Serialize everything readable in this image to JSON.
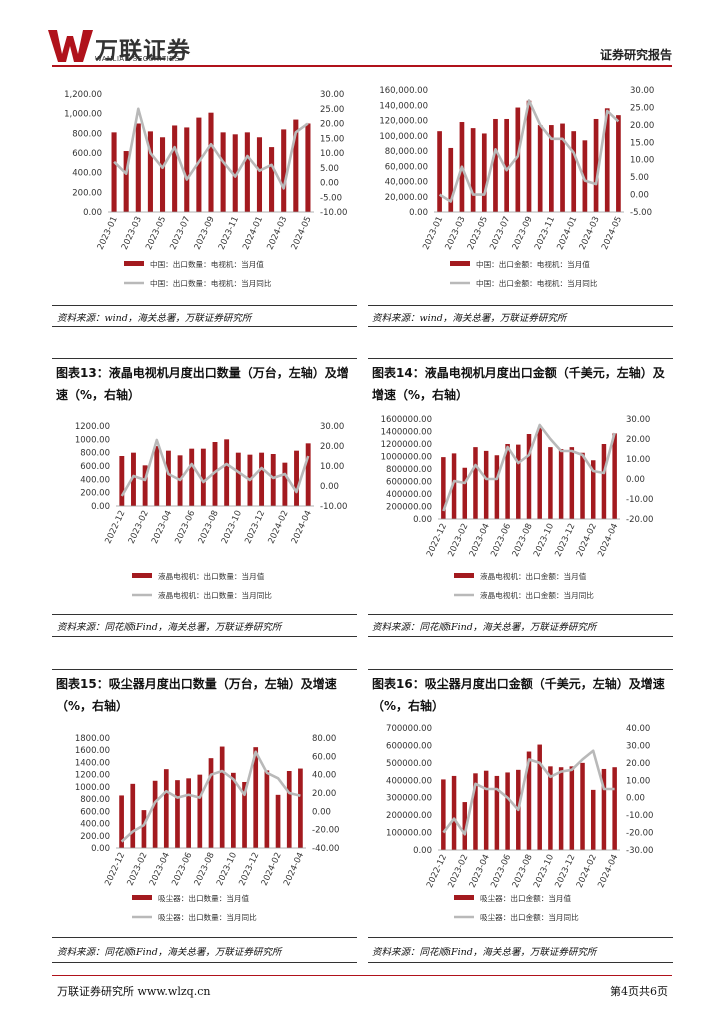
{
  "header": {
    "brand_cn": "万联证券",
    "brand_en": "WANLIAN SECURITIES",
    "report_type": "证券研究报告",
    "brand_color": "#b0121b"
  },
  "footer": {
    "left": "万联证券研究所 www.wlzq.cn",
    "right": "第4页共6页"
  },
  "panels": [
    {
      "title": "",
      "source": "资料来源：wind，海关总署，万联证券研究所"
    },
    {
      "title": "",
      "source": "资料来源：wind，海关总署，万联证券研究所"
    },
    {
      "title": "图表13：液晶电视机月度出口数量（万台，左轴）及增速（%，右轴）",
      "source": "资料来源：同花顺iFind，海关总署，万联证券研究所"
    },
    {
      "title": "图表14：液晶电视机月度出口金额（千美元，左轴）及增速（%，右轴）",
      "source": "资料来源：同花顺iFind，海关总署，万联证券研究所"
    },
    {
      "title": "图表15：吸尘器月度出口数量（万台，左轴）及增速（%，右轴）",
      "source": "资料来源：同花顺iFind，海关总署，万联证券研究所"
    },
    {
      "title": "图表16：吸尘器月度出口金额（千美元，左轴）及增速（%，右轴）",
      "source": "资料来源：同花顺iFind，海关总署，万联证券研究所"
    }
  ],
  "chart_data": [
    {
      "type": "bar+line",
      "x": [
        "2023-01",
        "2023-02",
        "2023-03",
        "2023-04",
        "2023-05",
        "2023-06",
        "2023-07",
        "2023-08",
        "2023-09",
        "2023-10",
        "2023-11",
        "2023-12",
        "2024-01",
        "2024-02",
        "2024-03",
        "2024-04",
        "2024-05"
      ],
      "tick_labels": [
        "2023-01",
        "2023-03",
        "2023-05",
        "2023-07",
        "2023-09",
        "2023-11",
        "2024-01",
        "2024-03",
        "2024-05"
      ],
      "left_ticks": [
        "0.00",
        "200.00",
        "400.00",
        "600.00",
        "800.00",
        "1,000.00",
        "1,200.00"
      ],
      "right_ticks": [
        "-10.00",
        "-5.00",
        "0.00",
        "5.00",
        "10.00",
        "15.00",
        "20.00",
        "25.00",
        "30.00"
      ],
      "ylim_left": [
        0,
        1200
      ],
      "ylim_right": [
        -10,
        30
      ],
      "series": [
        {
          "name": "中国：出口数量：电视机：当月值",
          "kind": "bar",
          "axis": "left",
          "values": [
            810,
            620,
            900,
            820,
            760,
            880,
            860,
            960,
            1010,
            810,
            790,
            810,
            760,
            660,
            840,
            940,
            900
          ]
        },
        {
          "name": "中国：出口数量：电视机：当月同比",
          "kind": "line",
          "axis": "right",
          "values": [
            7,
            3,
            25,
            10,
            5,
            12,
            1,
            7,
            13,
            7,
            2,
            9,
            4,
            6,
            -2,
            17,
            20
          ]
        }
      ],
      "bar_color": "#a31a1f",
      "line_color": "#b9b9b9"
    },
    {
      "type": "bar+line",
      "x": [
        "2023-01",
        "2023-02",
        "2023-03",
        "2023-04",
        "2023-05",
        "2023-06",
        "2023-07",
        "2023-08",
        "2023-09",
        "2023-10",
        "2023-11",
        "2023-12",
        "2024-01",
        "2024-02",
        "2024-03",
        "2024-04",
        "2024-05"
      ],
      "tick_labels": [
        "2023-01",
        "2023-03",
        "2023-05",
        "2023-07",
        "2023-09",
        "2023-11",
        "2024-01",
        "2024-03",
        "2024-05"
      ],
      "left_ticks": [
        "0.00",
        "20,000.00",
        "40,000.00",
        "60,000.00",
        "80,000.00",
        "100,000.00",
        "120,000.00",
        "140,000.00",
        "160,000.00"
      ],
      "right_ticks": [
        "-5.00",
        "0.00",
        "5.00",
        "10.00",
        "15.00",
        "20.00",
        "25.00",
        "30.00"
      ],
      "ylim_left": [
        0,
        160000
      ],
      "ylim_right": [
        -5,
        30
      ],
      "series": [
        {
          "name": "中国：出口金额：电视机：当月值",
          "kind": "bar",
          "axis": "left",
          "values": [
            106000,
            84000,
            118000,
            110000,
            103000,
            122000,
            122000,
            137000,
            146000,
            114000,
            114000,
            116000,
            106000,
            94000,
            122000,
            136000,
            127000
          ]
        },
        {
          "name": "中国：出口金额：电视机：当月同比",
          "kind": "line",
          "axis": "right",
          "values": [
            0,
            -2,
            8,
            0,
            0,
            13,
            7,
            11,
            27,
            20,
            16,
            16,
            12,
            4,
            3,
            24,
            21
          ]
        }
      ],
      "bar_color": "#a31a1f",
      "line_color": "#b9b9b9"
    },
    {
      "type": "bar+line",
      "x": [
        "2022-12",
        "2023-01",
        "2023-02",
        "2023-03",
        "2023-04",
        "2023-05",
        "2023-06",
        "2023-07",
        "2023-08",
        "2023-09",
        "2023-10",
        "2023-11",
        "2023-12",
        "2024-01",
        "2024-02",
        "2024-03",
        "2024-04"
      ],
      "tick_labels": [
        "2022-12",
        "2023-02",
        "2023-04",
        "2023-06",
        "2023-08",
        "2023-10",
        "2023-12",
        "2024-02",
        "2024-04"
      ],
      "left_ticks": [
        "0.00",
        "200.00",
        "400.00",
        "600.00",
        "800.00",
        "1000.00",
        "1200.00"
      ],
      "right_ticks": [
        "-10.00",
        "0.00",
        "10.00",
        "20.00",
        "30.00"
      ],
      "ylim_left": [
        0,
        1200
      ],
      "ylim_right": [
        -10,
        30
      ],
      "series": [
        {
          "name": "液晶电视机：出口数量：当月值",
          "kind": "bar",
          "axis": "left",
          "values": [
            750,
            800,
            610,
            900,
            830,
            760,
            860,
            860,
            960,
            1000,
            800,
            770,
            800,
            780,
            650,
            830,
            940
          ]
        },
        {
          "name": "液晶电视机：出口数量：当月同比",
          "kind": "line",
          "axis": "right",
          "values": [
            -5,
            5,
            3,
            23,
            6,
            3,
            11,
            2,
            7,
            11,
            7,
            3,
            9,
            4,
            6,
            -3,
            15
          ]
        }
      ],
      "bar_color": "#a31a1f",
      "line_color": "#b9b9b9"
    },
    {
      "type": "bar+line",
      "x": [
        "2022-12",
        "2023-01",
        "2023-02",
        "2023-03",
        "2023-04",
        "2023-05",
        "2023-06",
        "2023-07",
        "2023-08",
        "2023-09",
        "2023-10",
        "2023-11",
        "2023-12",
        "2024-01",
        "2024-02",
        "2024-03",
        "2024-04"
      ],
      "tick_labels": [
        "2022-12",
        "2023-02",
        "2023-04",
        "2023-06",
        "2023-08",
        "2023-10",
        "2023-12",
        "2024-02",
        "2024-04"
      ],
      "left_ticks": [
        "0.00",
        "200000.00",
        "400000.00",
        "600000.00",
        "800000.00",
        "1000000.00",
        "1200000.00",
        "1400000.00",
        "1600000.00"
      ],
      "right_ticks": [
        "-20.00",
        "-10.00",
        "0.00",
        "10.00",
        "20.00",
        "30.00"
      ],
      "ylim_left": [
        0,
        1600000
      ],
      "ylim_right": [
        -20,
        30
      ],
      "series": [
        {
          "name": "液晶电视机：出口金额：当月值",
          "kind": "bar",
          "axis": "left",
          "values": [
            990000,
            1050000,
            820000,
            1150000,
            1090000,
            1020000,
            1200000,
            1190000,
            1360000,
            1460000,
            1150000,
            1120000,
            1150000,
            1060000,
            940000,
            1200000,
            1370000
          ]
        },
        {
          "name": "液晶电视机：出口金额：当月同比",
          "kind": "line",
          "axis": "right",
          "values": [
            -16,
            -1,
            -2,
            7,
            0,
            0,
            16,
            8,
            12,
            27,
            20,
            14,
            14,
            12,
            4,
            3,
            23
          ]
        }
      ],
      "bar_color": "#a31a1f",
      "line_color": "#b9b9b9"
    },
    {
      "type": "bar+line",
      "x": [
        "2022-12",
        "2023-01",
        "2023-02",
        "2023-03",
        "2023-04",
        "2023-05",
        "2023-06",
        "2023-07",
        "2023-08",
        "2023-09",
        "2023-10",
        "2023-11",
        "2023-12",
        "2024-01",
        "2024-02",
        "2024-03",
        "2024-04"
      ],
      "tick_labels": [
        "2022-12",
        "2023-02",
        "2023-04",
        "2023-06",
        "2023-08",
        "2023-10",
        "2023-12",
        "2024-02",
        "2024-04"
      ],
      "left_ticks": [
        "0.00",
        "200.00",
        "400.00",
        "600.00",
        "800.00",
        "1000.00",
        "1200.00",
        "1400.00",
        "1600.00",
        "1800.00"
      ],
      "right_ticks": [
        "-40.00",
        "-20.00",
        "0.00",
        "20.00",
        "40.00",
        "60.00",
        "80.00"
      ],
      "ylim_left": [
        0,
        1800
      ],
      "ylim_right": [
        -40,
        80
      ],
      "series": [
        {
          "name": "吸尘器：出口数量：当月值",
          "kind": "bar",
          "axis": "left",
          "values": [
            860,
            1050,
            620,
            1100,
            1290,
            1110,
            1140,
            1200,
            1470,
            1660,
            1230,
            1080,
            1650,
            1270,
            870,
            1260,
            1300
          ]
        },
        {
          "name": "吸尘器：出口数量：当月同比",
          "kind": "line",
          "axis": "right",
          "values": [
            -33,
            -22,
            -15,
            10,
            22,
            15,
            18,
            15,
            40,
            44,
            35,
            18,
            65,
            42,
            36,
            20,
            17
          ]
        }
      ],
      "bar_color": "#a31a1f",
      "line_color": "#b9b9b9"
    },
    {
      "type": "bar+line",
      "x": [
        "2022-12",
        "2023-01",
        "2023-02",
        "2023-03",
        "2023-04",
        "2023-05",
        "2023-06",
        "2023-07",
        "2023-08",
        "2023-09",
        "2023-10",
        "2023-11",
        "2023-12",
        "2024-01",
        "2024-02",
        "2024-03",
        "2024-04"
      ],
      "tick_labels": [
        "2022-12",
        "2023-02",
        "2023-04",
        "2023-06",
        "2023-08",
        "2023-10",
        "2023-12",
        "2024-02",
        "2024-04"
      ],
      "left_ticks": [
        "0.00",
        "100000.00",
        "200000.00",
        "300000.00",
        "400000.00",
        "500000.00",
        "600000.00",
        "700000.00"
      ],
      "right_ticks": [
        "-30.00",
        "-20.00",
        "-10.00",
        "0.00",
        "10.00",
        "20.00",
        "30.00",
        "40.00"
      ],
      "ylim_left": [
        0,
        700000
      ],
      "ylim_right": [
        -30,
        40
      ],
      "series": [
        {
          "name": "吸尘器：出口金额：当月值",
          "kind": "bar",
          "axis": "left",
          "values": [
            405000,
            425000,
            275000,
            440000,
            455000,
            425000,
            445000,
            460000,
            565000,
            605000,
            480000,
            475000,
            480000,
            500000,
            345000,
            465000,
            475000
          ]
        },
        {
          "name": "吸尘器：出口金额：当月同比",
          "kind": "line",
          "axis": "right",
          "values": [
            -20,
            -12,
            -21,
            8,
            5,
            5,
            0,
            -7,
            22,
            20,
            12,
            15,
            16,
            22,
            27,
            5,
            5
          ]
        }
      ],
      "bar_color": "#a31a1f",
      "line_color": "#b9b9b9"
    }
  ]
}
